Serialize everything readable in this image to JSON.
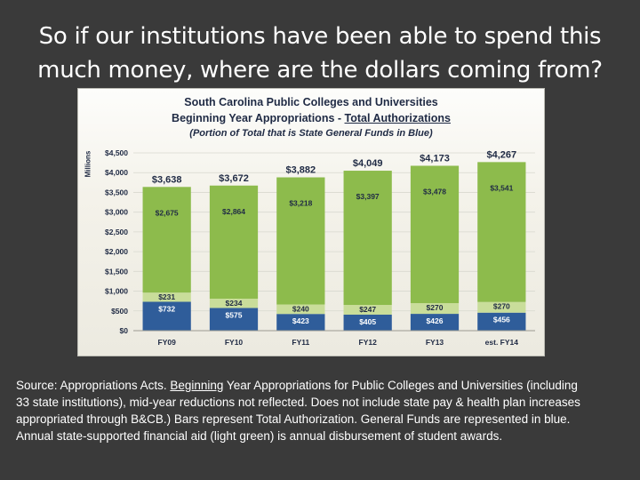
{
  "slide": {
    "title_line1": "So if our institutions have been able to spend this",
    "title_line2": "much money, where are the dollars coming from?",
    "source_prefix": "Source:  Appropriations Acts.  ",
    "source_underlined": "Beginning",
    "source_rest": " Year Appropriations for Public Colleges and Universities (including 33 state institutions), mid-year reductions not reflected. Does not include state pay & health plan increases appropriated through B&CB.)  Bars represent Total Authorization. General Funds are represented in blue.  Annual state-supported financial aid (light green) is annual disbursement of student awards."
  },
  "chart_data": {
    "type": "bar",
    "stacked": true,
    "title_line1": "South Carolina Public Colleges and Universities",
    "title_line2_prefix": "Beginning Year Appropriations - ",
    "title_line2_underlined": "Total Authorizations",
    "subtitle": "(Portion of Total that is State General Funds in Blue)",
    "ylabel": "Millions",
    "ylim": [
      0,
      4500
    ],
    "yticks": [
      0,
      500,
      1000,
      1500,
      2000,
      2500,
      3000,
      3500,
      4000,
      4500
    ],
    "ytick_labels": [
      "$0",
      "$500",
      "$1,000",
      "$1,500",
      "$2,000",
      "$2,500",
      "$3,000",
      "$3,500",
      "$4,000",
      "$4,500"
    ],
    "categories": [
      "FY09",
      "FY10",
      "FY11",
      "FY12",
      "FY13",
      "est. FY14"
    ],
    "series": [
      {
        "values": [
          732,
          575,
          423,
          405,
          426,
          456
        ],
        "labels": [
          "$732",
          "$575",
          "$423",
          "$405",
          "$426",
          "$456"
        ]
      },
      {
        "values": [
          231,
          234,
          240,
          247,
          270,
          270
        ],
        "labels": [
          "$231",
          "$234",
          "$240",
          "$247",
          "$270",
          "$270"
        ]
      },
      {
        "values": [
          2675,
          2864,
          3218,
          3397,
          3478,
          3541
        ],
        "labels": [
          "$2,675",
          "$2,864",
          "$3,218",
          "$3,397",
          "$3,478",
          "$3,541"
        ]
      }
    ],
    "totals": [
      3638,
      3672,
      3882,
      4049,
      4173,
      4267
    ],
    "total_labels": [
      "$3,638",
      "$3,672",
      "$3,882",
      "$4,049",
      "$4,173",
      "$4,267"
    ],
    "colors": {
      "general_funds": "#2f5d9a",
      "financial_aid": "#c9dd9a",
      "other": "#8dbb4c",
      "axis_text": "#1f2a44"
    }
  }
}
